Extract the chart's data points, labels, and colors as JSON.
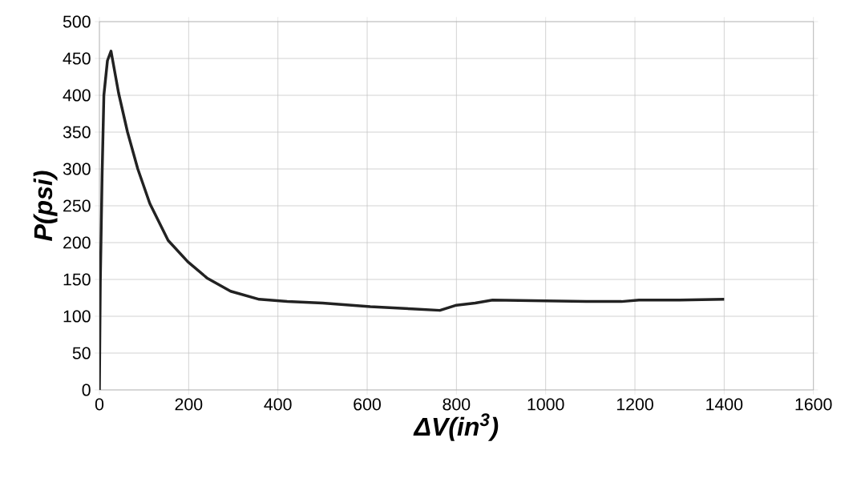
{
  "chart_data": {
    "type": "line",
    "xlabel": "**ΔV(in$^{3}$)**",
    "ylabel": "**P(psi)**",
    "x": [
      0,
      2,
      6,
      10,
      18,
      26,
      43,
      63,
      86,
      113,
      154,
      198,
      241,
      294,
      358,
      421,
      500,
      607,
      700,
      763,
      800,
      842,
      881,
      1000,
      1091,
      1170,
      1209,
      1300,
      1400
    ],
    "series": [
      {
        "color": "#222222",
        "values": [
          0,
          145,
          290,
          400,
          447,
          460,
          403,
          350,
          300,
          253,
          203,
          174,
          152,
          134,
          123,
          120,
          118,
          113,
          110,
          108,
          115,
          118,
          122,
          121,
          120,
          120,
          122,
          122,
          123
        ]
      }
    ],
    "xlim": [
      0,
      1600
    ],
    "ylim": [
      0,
      500
    ],
    "xticks": [
      0,
      200,
      400,
      600,
      800,
      1000,
      1200,
      1400,
      1600
    ],
    "yticks": [
      0,
      50,
      100,
      150,
      200,
      250,
      300,
      350,
      400,
      450,
      500
    ],
    "grid": true,
    "marker": "none",
    "line_style": "solid"
  }
}
